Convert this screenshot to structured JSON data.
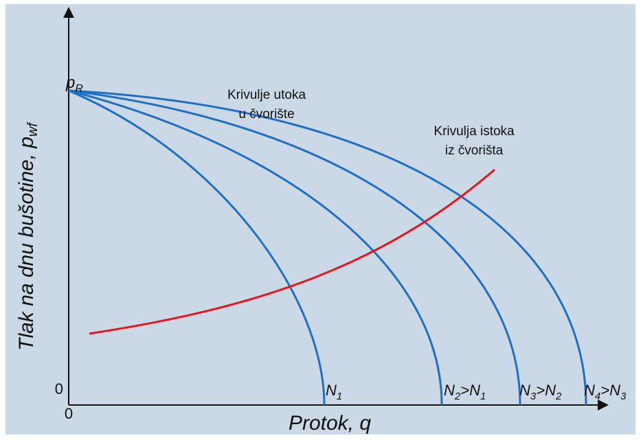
{
  "axes": {
    "y_label": {
      "text": "Tlak na dnu bušotine, p",
      "sub": "wf"
    },
    "x_label": "Protok, q",
    "y_origin": "0",
    "x_origin": "0"
  },
  "point_label": {
    "text": "p",
    "sub": "R"
  },
  "inflow_label": [
    "Krivulje utoka",
    "u čvorište"
  ],
  "outflow_label": [
    "Krivulja istoka",
    "iz čvorišta"
  ],
  "curve_labels": [
    [
      {
        "text": "N"
      },
      {
        "sub": "1"
      }
    ],
    [
      {
        "text": "N"
      },
      {
        "sub": "2"
      },
      {
        "text": ">N"
      },
      {
        "sub": "1"
      }
    ],
    [
      {
        "text": "N"
      },
      {
        "sub": "3"
      },
      {
        "text": ">N"
      },
      {
        "sub": "2"
      }
    ],
    [
      {
        "text": "N"
      },
      {
        "sub": "4"
      },
      {
        "text": ">N"
      },
      {
        "sub": "3"
      }
    ]
  ]
}
